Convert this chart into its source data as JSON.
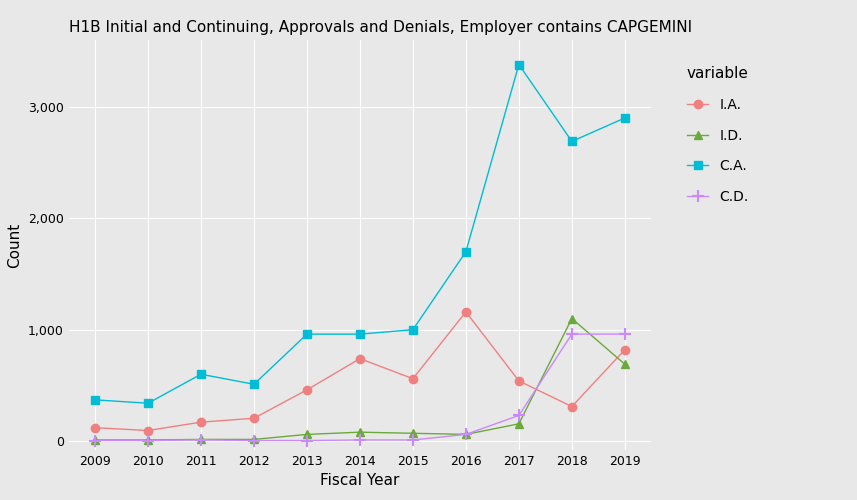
{
  "title": "H1B Initial and Continuing, Approvals and Denials, Employer contains CAPGEMINI",
  "xlabel": "Fiscal Year",
  "ylabel": "Count",
  "years": [
    2009,
    2010,
    2011,
    2012,
    2013,
    2014,
    2015,
    2016,
    2017,
    2018,
    2019
  ],
  "IA": [
    120,
    95,
    170,
    205,
    460,
    740,
    560,
    1160,
    540,
    310,
    820
  ],
  "ID": [
    10,
    10,
    15,
    15,
    60,
    80,
    70,
    60,
    155,
    1100,
    690
  ],
  "CA": [
    370,
    340,
    600,
    510,
    960,
    960,
    1000,
    1700,
    3380,
    2690,
    2900
  ],
  "CD": [
    5,
    5,
    10,
    5,
    5,
    10,
    10,
    60,
    230,
    960,
    960
  ],
  "line_colors": {
    "IA": "#f08080",
    "ID": "#6aaa3a",
    "CA": "#00bcd4",
    "CD": "#cc88ff"
  },
  "markers": {
    "IA": "o",
    "ID": "^",
    "CA": "s",
    "CD": "+"
  },
  "legend_labels": {
    "IA": "I.A.",
    "ID": "I.D.",
    "CA": "C.A.",
    "CD": "C.D."
  },
  "background_color": "#e8e8e8",
  "legend_bg": "#e8e8e8",
  "ylim": [
    -80,
    3600
  ],
  "yticks": [
    0,
    1000,
    2000,
    3000
  ],
  "title_fontsize": 11,
  "axis_label_fontsize": 11,
  "legend_title": "variable",
  "legend_title_fontsize": 11,
  "legend_fontsize": 10
}
